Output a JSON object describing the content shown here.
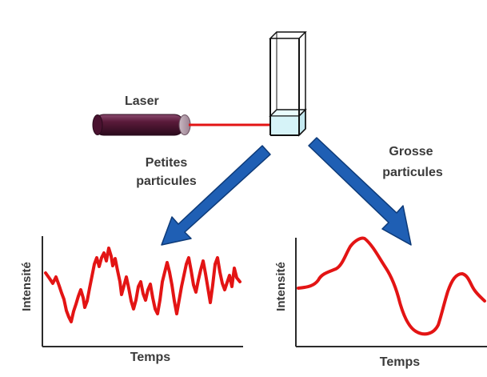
{
  "labels": {
    "laser": "Laser",
    "small_line1": "Petites",
    "small_line2": "particules",
    "large_line1": "Grosse",
    "large_line2": "particules"
  },
  "left_plot": {
    "ylabel": "Intensité",
    "xlabel": "Temps"
  },
  "right_plot": {
    "ylabel": "Intensité",
    "xlabel": "Temps"
  },
  "colors": {
    "signal": "#e31414",
    "laser_body": "#5a1a3a",
    "laser_beam": "#e31414",
    "arrow_fill": "#1f5fb4",
    "arrow_edge": "#0d3a78",
    "cuvette_liquid": "#d6f3f8",
    "axis": "#2b2b2b"
  },
  "icons": {
    "laser": "laser-tube-icon",
    "cuvette": "cuvette-icon"
  }
}
